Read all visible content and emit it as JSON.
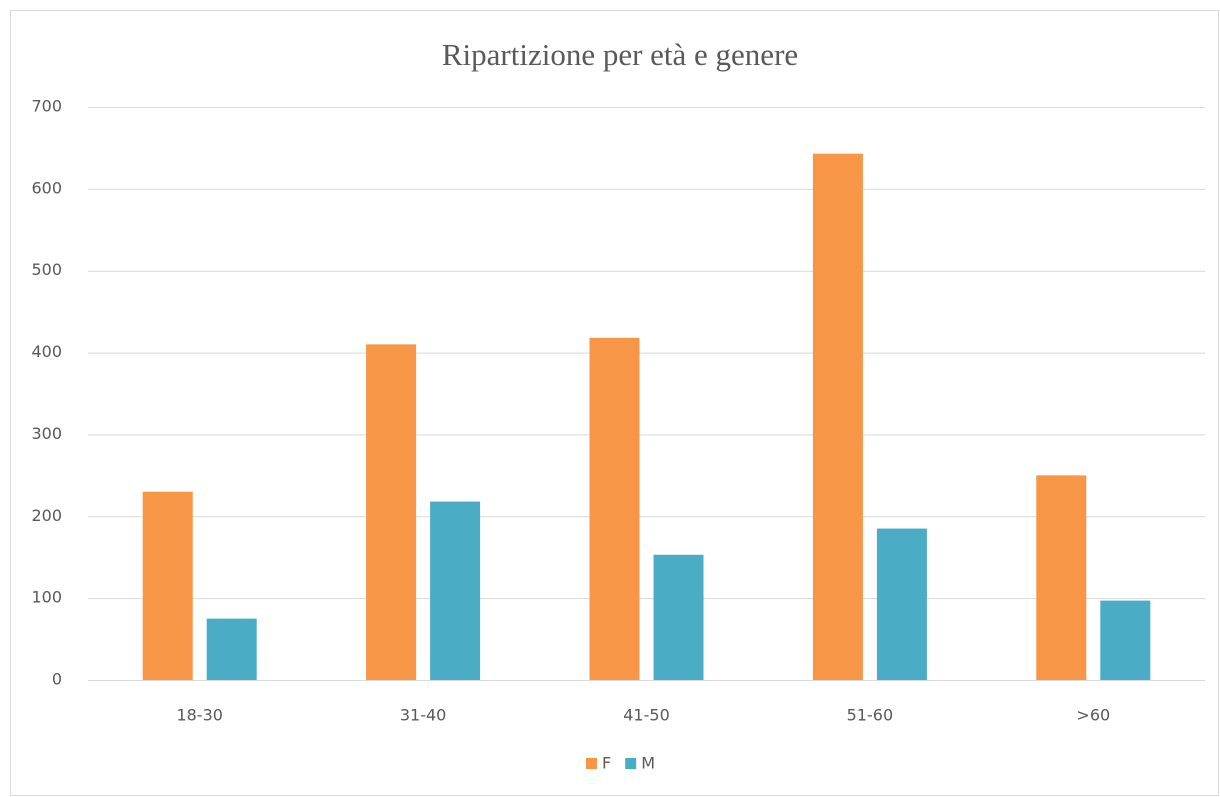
{
  "chart_data": {
    "type": "bar",
    "title": "Ripartizione per età e genere",
    "categories": [
      "18-30",
      "31-40",
      "41-50",
      "51-60",
      ">60"
    ],
    "series": [
      {
        "name": "F",
        "color": "#f79646",
        "values": [
          230,
          410,
          418,
          643,
          250
        ]
      },
      {
        "name": "M",
        "color": "#4bacc6",
        "values": [
          75,
          218,
          153,
          185,
          97
        ]
      }
    ],
    "ylim": [
      0,
      700
    ],
    "yticks": [
      0,
      100,
      200,
      300,
      400,
      500,
      600,
      700
    ],
    "grid": true,
    "legend": "bottom"
  }
}
